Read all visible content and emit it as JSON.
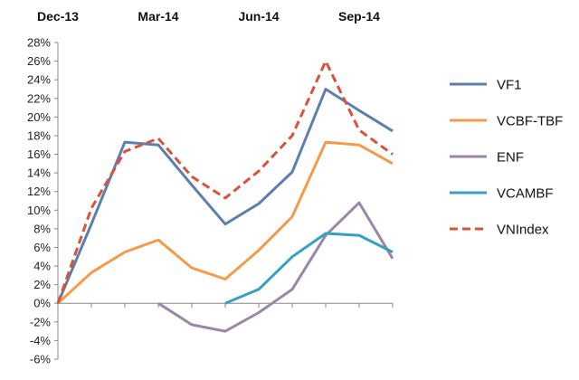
{
  "chart_data": {
    "type": "line",
    "title": "",
    "xlabel": "",
    "ylabel": "",
    "x_positions": [
      0,
      1,
      2,
      3,
      4,
      5,
      6,
      7,
      8,
      9,
      10
    ],
    "period_labels": [
      {
        "label": "Dec-13",
        "x": 0
      },
      {
        "label": "Mar-14",
        "x": 3
      },
      {
        "label": "Jun-14",
        "x": 6
      },
      {
        "label": "Sep-14",
        "x": 9
      }
    ],
    "ylim": [
      -6,
      28
    ],
    "yticks": [
      -6,
      -4,
      -2,
      0,
      2,
      4,
      6,
      8,
      10,
      12,
      14,
      16,
      18,
      20,
      22,
      24,
      26,
      28
    ],
    "ytick_labels": [
      "-6%",
      "-4%",
      "-2%",
      "0%",
      "2%",
      "4%",
      "6%",
      "8%",
      "10%",
      "12%",
      "14%",
      "16%",
      "18%",
      "20%",
      "22%",
      "24%",
      "26%",
      "28%"
    ],
    "legend_position": "right",
    "series": [
      {
        "name": "VF1",
        "color": "#5b7fae",
        "dashed": false,
        "x": [
          0,
          1,
          2,
          3,
          4,
          5,
          6,
          7,
          8,
          9,
          10
        ],
        "values": [
          0,
          8.5,
          17.3,
          17.0,
          12.7,
          8.5,
          10.7,
          14.1,
          23.0,
          20.7,
          18.5
        ]
      },
      {
        "name": "VCBF-TBF",
        "color": "#f59a4a",
        "dashed": false,
        "x": [
          0,
          1,
          2,
          3,
          4,
          5,
          6,
          7,
          8,
          9,
          10
        ],
        "values": [
          0,
          3.3,
          5.5,
          6.8,
          3.8,
          2.6,
          5.7,
          9.3,
          17.3,
          17.0,
          15.0
        ]
      },
      {
        "name": "ENF",
        "color": "#9b86a8",
        "dashed": false,
        "x": [
          3,
          4,
          5,
          6,
          7,
          8,
          9,
          10
        ],
        "values": [
          0,
          -2.3,
          -3.0,
          -1.0,
          1.5,
          7.3,
          10.8,
          4.8
        ]
      },
      {
        "name": "VCAMBF",
        "color": "#35a0c4",
        "dashed": false,
        "x": [
          5,
          6,
          7,
          8,
          9,
          10
        ],
        "values": [
          0,
          1.5,
          5.0,
          7.5,
          7.3,
          5.5
        ]
      },
      {
        "name": "VNIndex",
        "color": "#d9523a",
        "dashed": true,
        "x": [
          0,
          1,
          2,
          3,
          4,
          5,
          6,
          7,
          8,
          9,
          10
        ],
        "values": [
          0,
          10.2,
          16.3,
          17.7,
          13.6,
          11.3,
          14.2,
          18.0,
          26.0,
          18.6,
          16.0
        ]
      }
    ]
  }
}
